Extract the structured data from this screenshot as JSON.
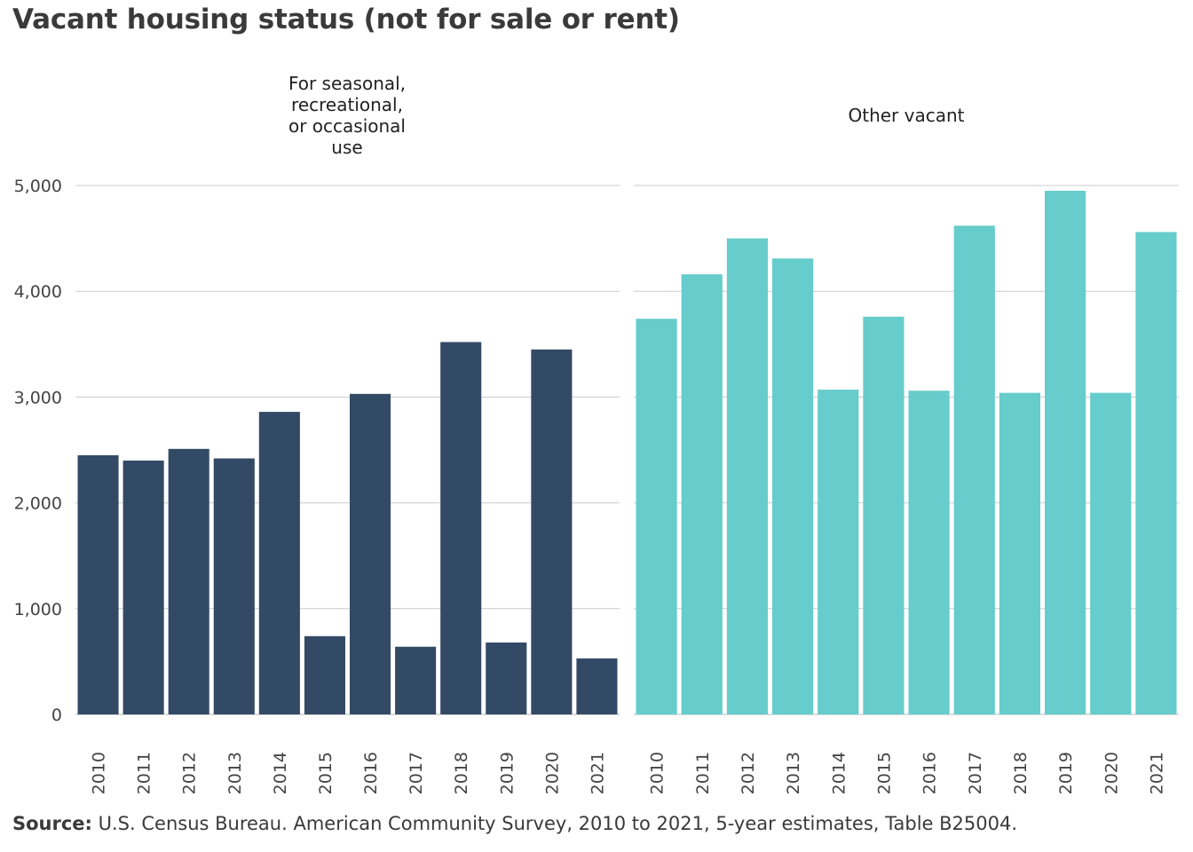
{
  "chart_data": {
    "type": "bar",
    "title": "Vacant housing status (not for sale or rent)",
    "categories": [
      "2010",
      "2011",
      "2012",
      "2013",
      "2014",
      "2015",
      "2016",
      "2017",
      "2018",
      "2019",
      "2020",
      "2021"
    ],
    "ylim": [
      0,
      5000
    ],
    "yticks": [
      0,
      1000,
      2000,
      3000,
      4000,
      5000
    ],
    "ytick_labels": [
      "0",
      "1,000",
      "2,000",
      "3,000",
      "4,000",
      "5,000"
    ],
    "grid": true,
    "panels": [
      {
        "name": "For seasonal, recreational, or occasional use",
        "title_lines": [
          "For seasonal,",
          "recreational,",
          "or occasional",
          "use"
        ],
        "color": "#334a66",
        "values": [
          2450,
          2400,
          2510,
          2420,
          2860,
          740,
          3030,
          640,
          3520,
          680,
          3450,
          530
        ]
      },
      {
        "name": "Other vacant",
        "title_lines": [
          "Other vacant"
        ],
        "color": "#66cccc",
        "values": [
          3740,
          4160,
          4500,
          4310,
          3070,
          3760,
          3060,
          4620,
          3040,
          4950,
          3040,
          4560
        ]
      }
    ]
  },
  "source": {
    "label": "Source:",
    "text": " U.S. Census Bureau.  American Community  Survey, 2010  to 2021, 5-year estimates,  Table B25004."
  }
}
